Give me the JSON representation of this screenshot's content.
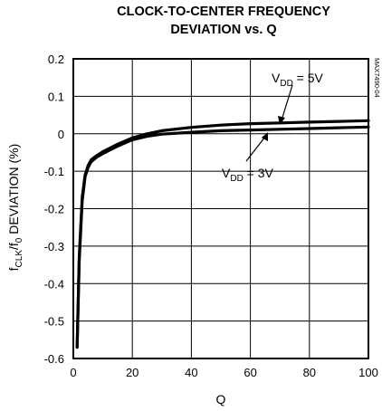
{
  "chart_data": {
    "type": "line",
    "title_lines": [
      "CLOCK-TO-CENTER FREQUENCY",
      "DEVIATION vs. Q"
    ],
    "xlabel": "Q",
    "ylabel": {
      "prefix": "f",
      "sub1": "CLK",
      "mid": "/f",
      "sub2": "0",
      "suffix": " DEVIATION (%)"
    },
    "xlim": [
      0,
      100
    ],
    "ylim": [
      -0.6,
      0.2
    ],
    "xticks": [
      0,
      20,
      40,
      60,
      80,
      100
    ],
    "xtick_labels": [
      "0",
      "20",
      "40",
      "60",
      "80",
      "100"
    ],
    "yticks": [
      0.2,
      0.1,
      0,
      -0.1,
      -0.2,
      -0.3,
      -0.4,
      -0.5,
      -0.6
    ],
    "ytick_labels": [
      "0.2",
      "0.1",
      "0",
      "-0.1",
      "-0.2",
      "-0.3",
      "-0.4",
      "-0.5",
      "-0.6"
    ],
    "grid": true,
    "series": [
      {
        "name": "VDD = 5V",
        "x": [
          1.3,
          2,
          3,
          4,
          5,
          6,
          8,
          10,
          15,
          20,
          25,
          30,
          40,
          50,
          60,
          70,
          80,
          90,
          100
        ],
        "y": [
          -0.57,
          -0.33,
          -0.17,
          -0.11,
          -0.085,
          -0.07,
          -0.058,
          -0.048,
          -0.028,
          -0.011,
          0.0,
          0.008,
          0.017,
          0.023,
          0.027,
          0.029,
          0.031,
          0.033,
          0.035
        ]
      },
      {
        "name": "VDD = 3V",
        "x": [
          1.3,
          2,
          3,
          4,
          5,
          6,
          8,
          10,
          15,
          20,
          25,
          30,
          40,
          50,
          60,
          70,
          80,
          90,
          100
        ],
        "y": [
          -0.57,
          -0.34,
          -0.18,
          -0.115,
          -0.09,
          -0.075,
          -0.062,
          -0.053,
          -0.033,
          -0.016,
          -0.007,
          -0.001,
          0.004,
          0.008,
          0.01,
          0.012,
          0.014,
          0.016,
          0.018
        ]
      }
    ],
    "annotations": [
      {
        "text_main": "V",
        "text_sub": "DD",
        "text_rest": " = 5V",
        "series": "VDD = 5V"
      },
      {
        "text_main": "V",
        "text_sub": "DD",
        "text_rest": " = 3V",
        "series": "VDD = 3V"
      }
    ],
    "side_label": "MAX7490-04"
  },
  "colors": {
    "line": "#000000",
    "grid": "#000000",
    "background": "#ffffff"
  }
}
